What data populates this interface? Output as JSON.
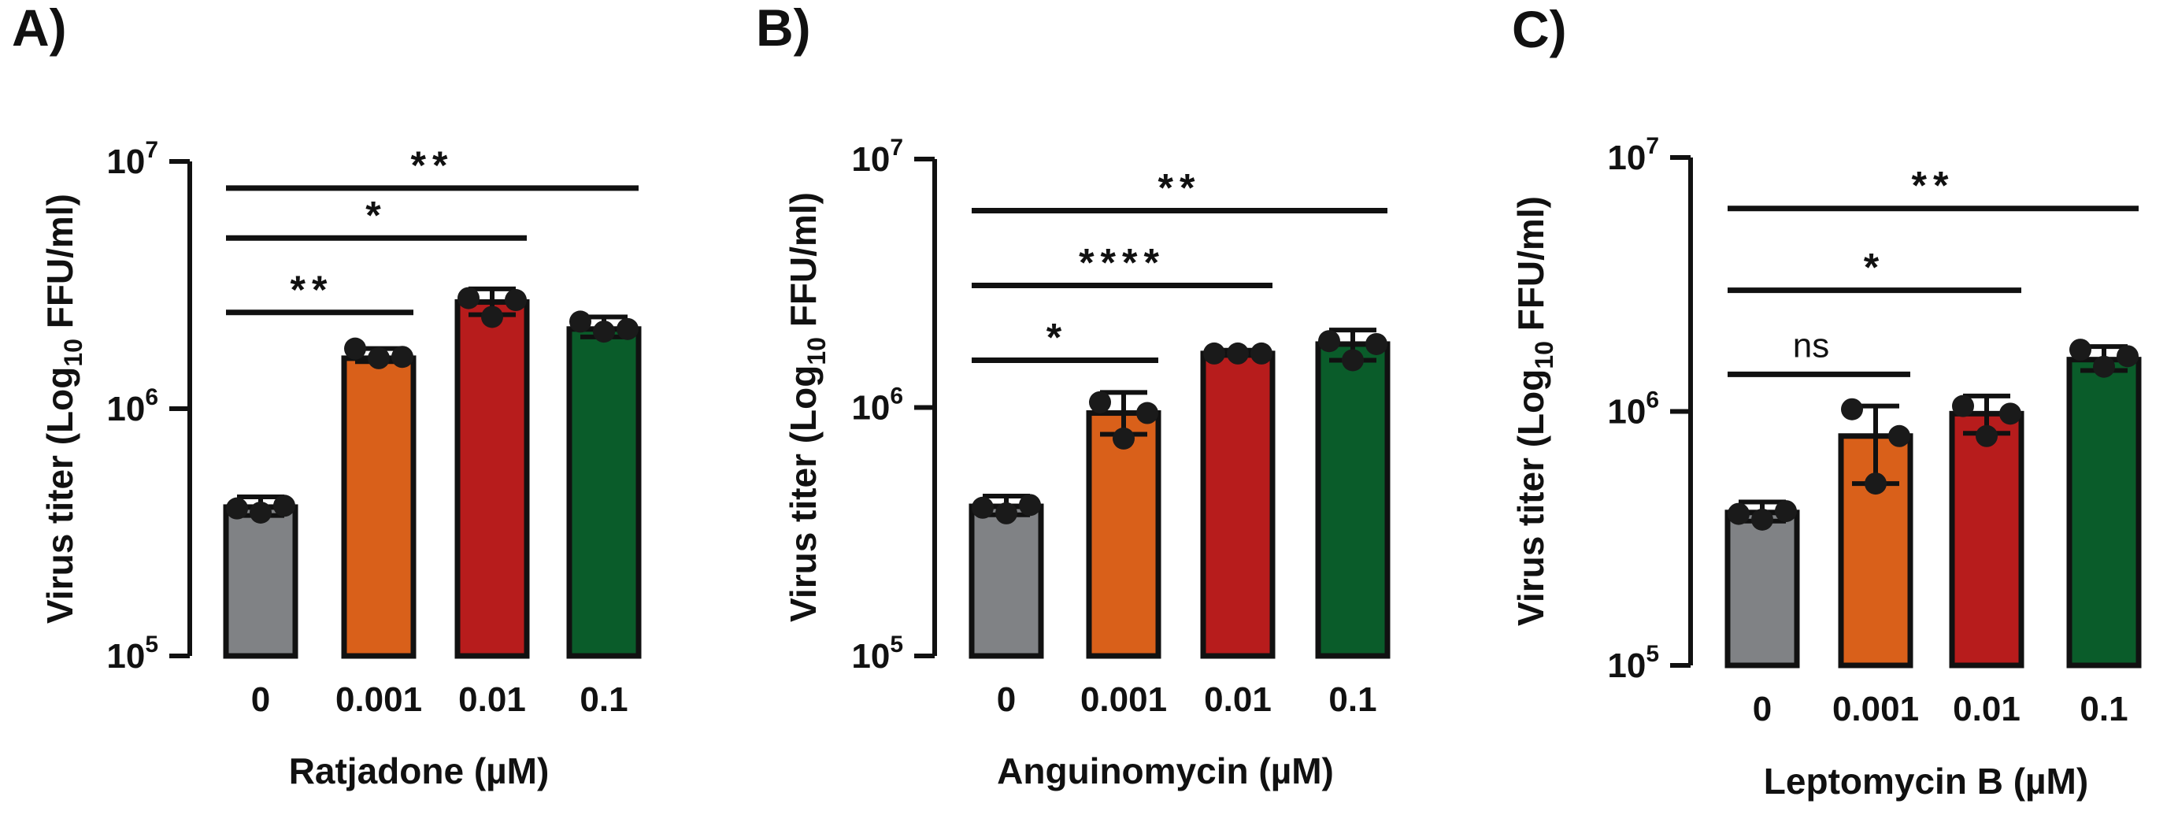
{
  "chart_data": [
    {
      "type": "bar",
      "panel_label": "A)",
      "categories": [
        "0",
        "0.001",
        "0.01",
        "0.1"
      ],
      "xlabel": "Ratjadone (µM)",
      "ylabel_main": "Virus titer (Log",
      "ylabel_sub": "10",
      "ylabel_tail": " FFU/ml)",
      "yscale": "log",
      "ylim": [
        100000,
        10000000
      ],
      "yticks": [
        {
          "base": "10",
          "exp": "5",
          "value": 100000
        },
        {
          "base": "10",
          "exp": "6",
          "value": 1000000
        },
        {
          "base": "10",
          "exp": "7",
          "value": 10000000
        }
      ],
      "bars": [
        {
          "value": 400000,
          "err_low": 370000,
          "err_high": 440000,
          "points": [
            395000,
            380000,
            405000
          ],
          "color": "#808285"
        },
        {
          "value": 1600000,
          "err_low": 1550000,
          "err_high": 1750000,
          "points": [
            1750000,
            1600000,
            1620000
          ],
          "color": "#d9601a"
        },
        {
          "value": 2700000,
          "err_low": 2400000,
          "err_high": 3050000,
          "points": [
            2800000,
            2350000,
            2750000
          ],
          "color": "#b71c1c"
        },
        {
          "value": 2100000,
          "err_low": 1950000,
          "err_high": 2350000,
          "points": [
            2250000,
            2050000,
            2100000
          ],
          "color": "#0a5c2a"
        }
      ],
      "comparisons": [
        {
          "from": 0,
          "to": 1,
          "label": "**",
          "y": 2450000
        },
        {
          "from": 0,
          "to": 2,
          "label": "*",
          "y": 4900000
        },
        {
          "from": 0,
          "to": 3,
          "label": "**",
          "y": 7800000
        }
      ]
    },
    {
      "type": "bar",
      "panel_label": "B)",
      "categories": [
        "0",
        "0.001",
        "0.01",
        "0.1"
      ],
      "xlabel": "Anguinomycin (µM)",
      "ylabel_main": "Virus titer (Log",
      "ylabel_sub": "10",
      "ylabel_tail": " FFU/ml)",
      "yscale": "log",
      "ylim": [
        100000,
        10000000
      ],
      "yticks": [
        {
          "base": "10",
          "exp": "5",
          "value": 100000
        },
        {
          "base": "10",
          "exp": "6",
          "value": 1000000
        },
        {
          "base": "10",
          "exp": "7",
          "value": 10000000
        }
      ],
      "bars": [
        {
          "value": 400000,
          "err_low": 370000,
          "err_high": 440000,
          "points": [
            395000,
            375000,
            405000
          ],
          "color": "#808285"
        },
        {
          "value": 950000,
          "err_low": 780000,
          "err_high": 1150000,
          "points": [
            1050000,
            750000,
            950000
          ],
          "color": "#d9601a"
        },
        {
          "value": 1650000,
          "err_low": 1620000,
          "err_high": 1700000,
          "points": [
            1650000,
            1650000,
            1650000
          ],
          "color": "#b71c1c"
        },
        {
          "value": 1800000,
          "err_low": 1550000,
          "err_high": 2050000,
          "points": [
            1850000,
            1550000,
            1800000
          ],
          "color": "#0a5c2a"
        }
      ],
      "comparisons": [
        {
          "from": 0,
          "to": 1,
          "label": "*",
          "y": 1550000
        },
        {
          "from": 0,
          "to": 2,
          "label": "****",
          "y": 3100000
        },
        {
          "from": 0,
          "to": 3,
          "label": "**",
          "y": 6200000
        }
      ]
    },
    {
      "type": "bar",
      "panel_label": "C)",
      "categories": [
        "0",
        "0.001",
        "0.01",
        "0.1"
      ],
      "xlabel": "Leptomycin B (µM)",
      "ylabel_main": "Virus titer (Log",
      "ylabel_sub": "10",
      "ylabel_tail": " FFU/ml)",
      "yscale": "log",
      "ylim": [
        100000,
        10000000
      ],
      "yticks": [
        {
          "base": "10",
          "exp": "5",
          "value": 100000
        },
        {
          "base": "10",
          "exp": "6",
          "value": 1000000
        },
        {
          "base": "10",
          "exp": "7",
          "value": 10000000
        }
      ],
      "bars": [
        {
          "value": 400000,
          "err_low": 370000,
          "err_high": 440000,
          "points": [
            395000,
            375000,
            405000
          ],
          "color": "#808285"
        },
        {
          "value": 800000,
          "err_low": 520000,
          "err_high": 1050000,
          "points": [
            1020000,
            520000,
            800000
          ],
          "color": "#d9601a"
        },
        {
          "value": 980000,
          "err_low": 820000,
          "err_high": 1150000,
          "points": [
            1050000,
            800000,
            980000
          ],
          "color": "#b71c1c"
        },
        {
          "value": 1600000,
          "err_low": 1450000,
          "err_high": 1800000,
          "points": [
            1750000,
            1500000,
            1650000
          ],
          "color": "#0a5c2a"
        }
      ],
      "comparisons": [
        {
          "from": 0,
          "to": 1,
          "label": "ns",
          "y": 1400000
        },
        {
          "from": 0,
          "to": 2,
          "label": "*",
          "y": 3000000
        },
        {
          "from": 0,
          "to": 3,
          "label": "**",
          "y": 6300000
        }
      ]
    }
  ]
}
